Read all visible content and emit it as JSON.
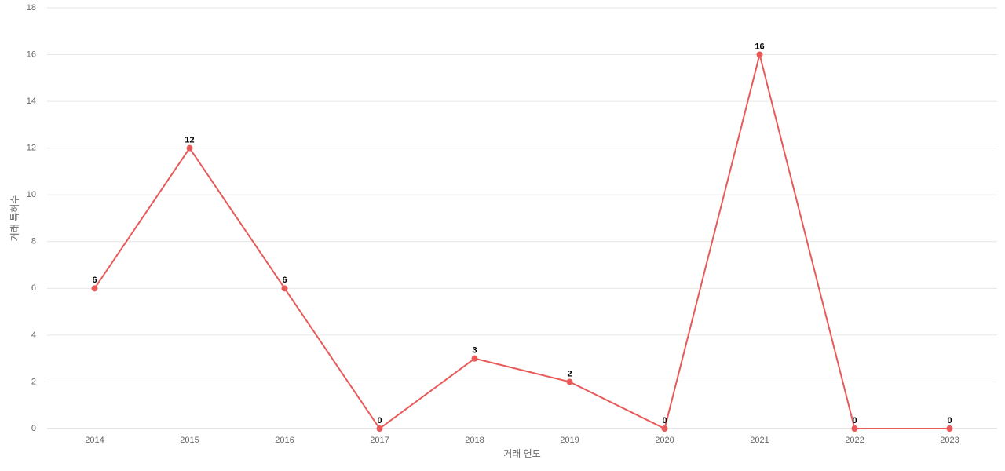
{
  "chart_data": {
    "type": "line",
    "x_label": "거래 연도",
    "y_label": "거래 특허수",
    "categories": [
      "2014",
      "2015",
      "2016",
      "2017",
      "2018",
      "2019",
      "2020",
      "2021",
      "2022",
      "2023"
    ],
    "series": [
      {
        "name": "거래 특허수",
        "color": "#e85a5a",
        "values": [
          6,
          12,
          6,
          0,
          3,
          2,
          0,
          16,
          0,
          0
        ]
      }
    ],
    "ylim": [
      0,
      18
    ],
    "yticks": [
      0,
      2,
      4,
      6,
      8,
      10,
      12,
      14,
      16,
      18
    ],
    "grid": true,
    "data_labels": true
  }
}
